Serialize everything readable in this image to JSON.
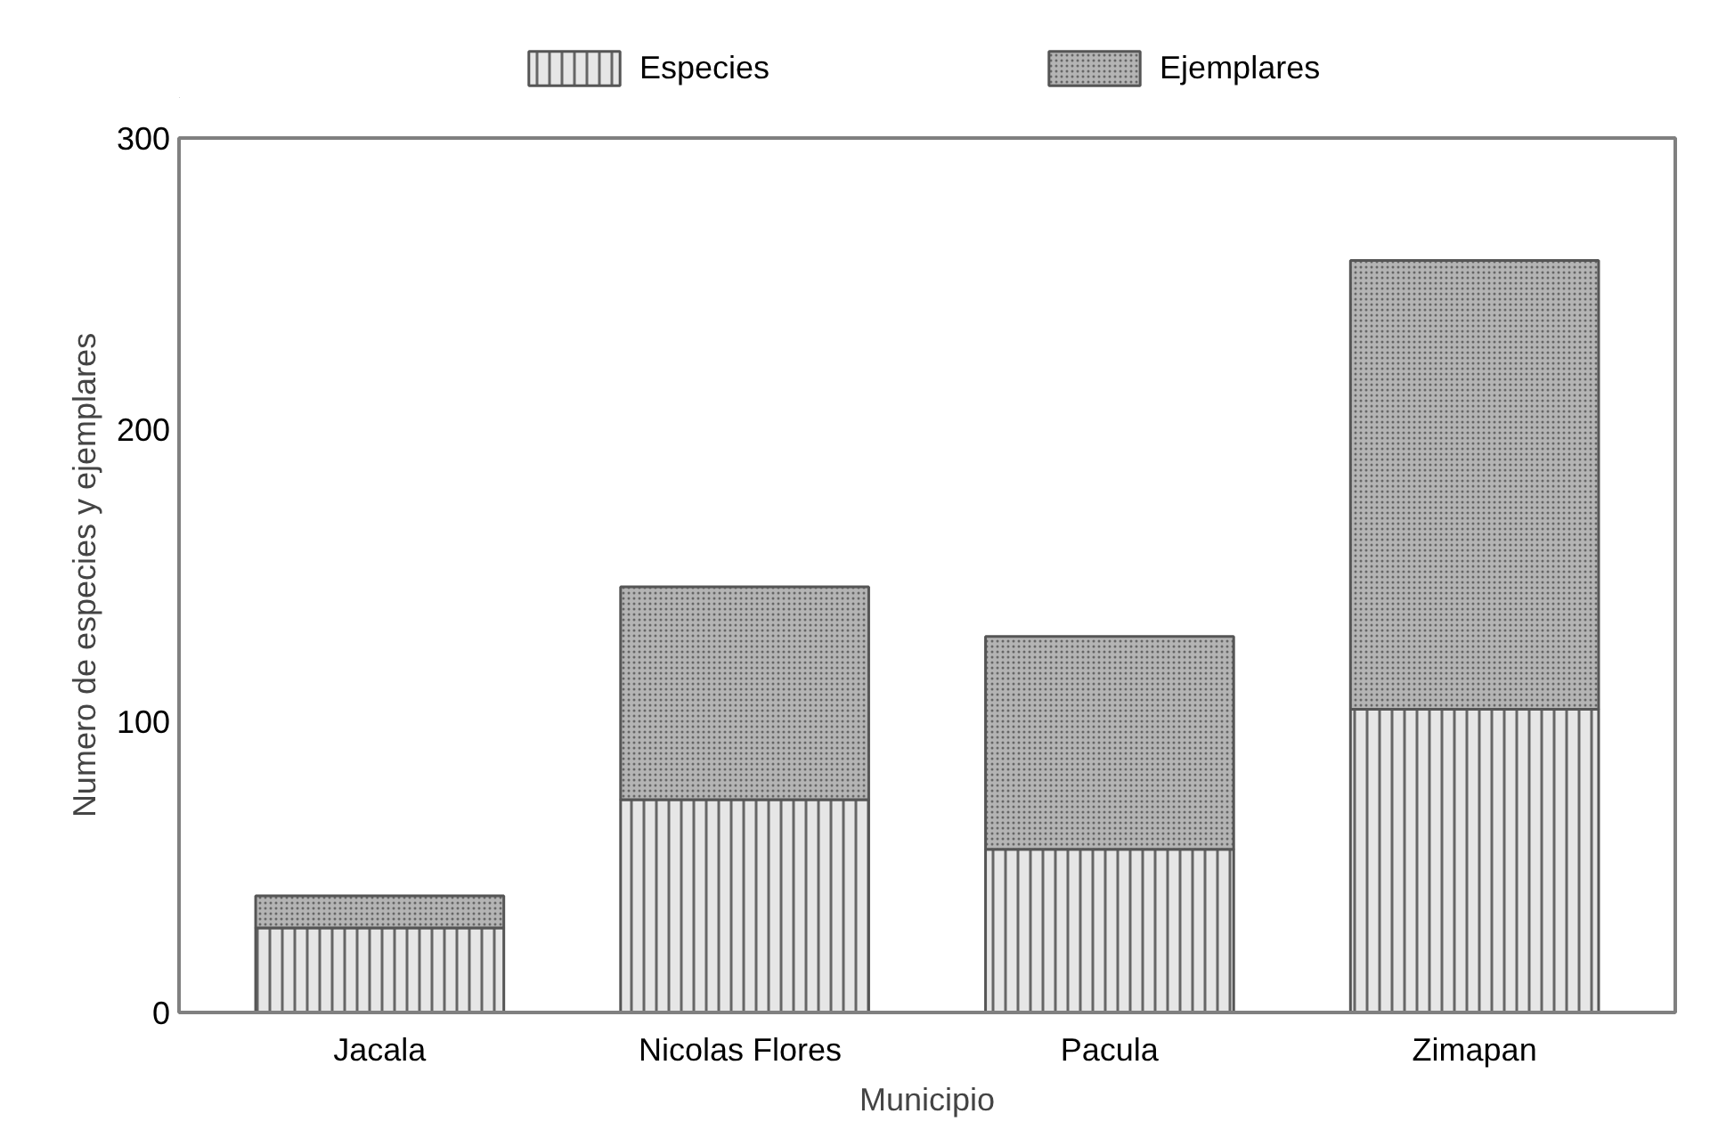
{
  "chart_data": {
    "type": "bar",
    "stacked": true,
    "xlabel": "Municipio",
    "ylabel": "Numero de especies y ejemplares",
    "categories": [
      "Jacala",
      "Nicolas  Flores",
      "Pacula",
      "Zimapan"
    ],
    "series": [
      {
        "name": "Especies",
        "color": "#e6e6e6",
        "values": [
          29,
          73,
          56,
          104
        ]
      },
      {
        "name": "Ejemplares",
        "color": "#b4b4b4",
        "values": [
          11,
          73,
          73,
          154
        ]
      }
    ],
    "ylim": [
      0,
      300
    ],
    "yticks": [
      0,
      100,
      200,
      300
    ],
    "grid": false,
    "legend": "top"
  }
}
